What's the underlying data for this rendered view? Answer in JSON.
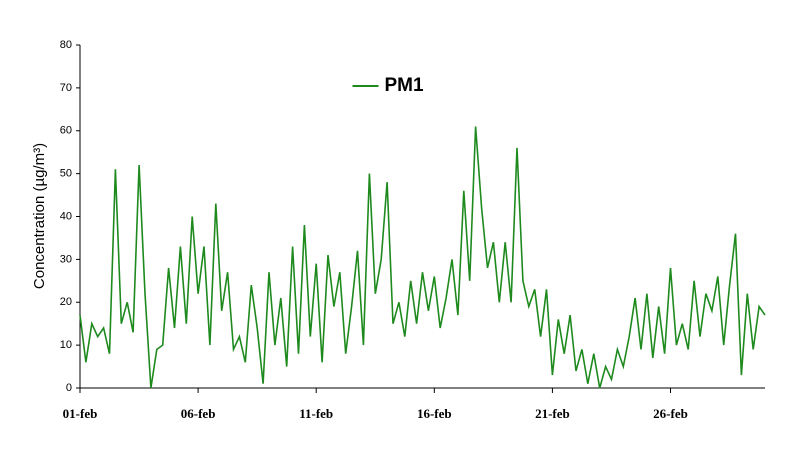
{
  "chart_data": {
    "type": "line",
    "y_label": "Concentration (µg/m³)",
    "legend": "top-center",
    "grid": false,
    "xlim": [
      0,
      29
    ],
    "xticks": [
      {
        "value": 0,
        "label": "01-feb"
      },
      {
        "value": 5,
        "label": "06-feb"
      },
      {
        "value": 10,
        "label": "11-feb"
      },
      {
        "value": 15,
        "label": "16-feb"
      },
      {
        "value": 20,
        "label": "21-feb"
      },
      {
        "value": 25,
        "label": "26-feb"
      }
    ],
    "ylim": [
      0,
      80
    ],
    "yticks": [
      0,
      10,
      20,
      30,
      40,
      50,
      60,
      70,
      80
    ],
    "x": [
      0,
      0.25,
      0.5,
      0.75,
      1,
      1.25,
      1.5,
      1.75,
      2,
      2.25,
      2.5,
      2.75,
      3,
      3.25,
      3.5,
      3.75,
      4,
      4.25,
      4.5,
      4.75,
      5,
      5.25,
      5.5,
      5.75,
      6,
      6.25,
      6.5,
      6.75,
      7,
      7.25,
      7.5,
      7.75,
      8,
      8.25,
      8.5,
      8.75,
      9,
      9.25,
      9.5,
      9.75,
      10,
      10.25,
      10.5,
      10.75,
      11,
      11.25,
      11.5,
      11.75,
      12,
      12.25,
      12.5,
      12.75,
      13,
      13.25,
      13.5,
      13.75,
      14,
      14.25,
      14.5,
      14.75,
      15,
      15.25,
      15.5,
      15.75,
      16,
      16.25,
      16.5,
      16.75,
      17,
      17.25,
      17.5,
      17.75,
      18,
      18.25,
      18.5,
      18.75,
      19,
      19.25,
      19.5,
      19.75,
      20,
      20.25,
      20.5,
      20.75,
      21,
      21.25,
      21.5,
      21.75,
      22,
      22.25,
      22.5,
      22.75,
      23,
      23.25,
      23.5,
      23.75,
      24,
      24.25,
      24.5,
      24.75,
      25,
      25.25,
      25.5,
      25.75,
      26,
      26.25,
      26.5,
      26.75,
      27,
      27.25,
      27.5,
      27.75,
      28,
      28.25,
      28.5,
      28.75,
      29
    ],
    "series": [
      {
        "name": "PM1",
        "color": "#1e8a1e",
        "values": [
          17,
          6,
          15,
          12,
          14,
          8,
          51,
          15,
          20,
          13,
          52,
          22,
          0,
          9,
          10,
          28,
          14,
          33,
          15,
          40,
          22,
          33,
          10,
          43,
          18,
          27,
          9,
          12,
          6,
          24,
          14,
          1,
          27,
          10,
          21,
          5,
          33,
          8,
          38,
          12,
          29,
          6,
          31,
          19,
          27,
          8,
          19,
          32,
          10,
          50,
          22,
          30,
          48,
          15,
          20,
          12,
          25,
          15,
          27,
          18,
          26,
          14,
          21,
          30,
          17,
          46,
          25,
          61,
          42,
          28,
          34,
          20,
          34,
          20,
          56,
          25,
          19,
          23,
          12,
          23,
          3,
          16,
          8,
          17,
          4,
          9,
          1,
          8,
          0,
          5,
          2,
          9,
          5,
          12,
          21,
          9,
          22,
          7,
          19,
          8,
          28,
          10,
          15,
          9,
          25,
          12,
          22,
          18,
          26,
          10,
          24,
          36,
          3,
          22,
          9,
          19,
          17
        ]
      }
    ]
  }
}
